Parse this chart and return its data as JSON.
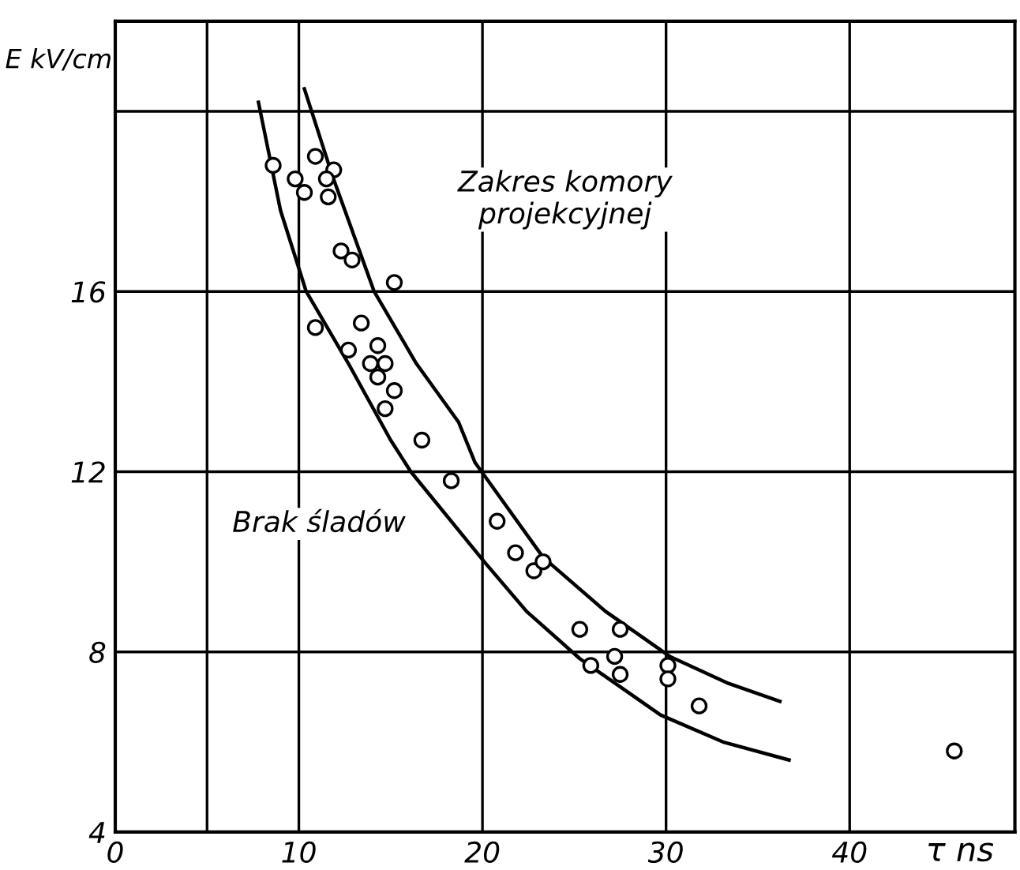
{
  "chart_data": {
    "type": "scatter",
    "xlabel": "τ ns",
    "ylabel": "E kV/cm",
    "xlim": [
      0,
      49
    ],
    "ylim": [
      4,
      22
    ],
    "xticks": [
      0,
      {
        "value": 5,
        "label": null
      },
      10,
      20,
      30,
      40
    ],
    "yticks": [
      4,
      8,
      12,
      16,
      {
        "value": 20,
        "label": null
      }
    ],
    "grid": true,
    "annotations": [
      "Zakres komory\nprojekcyjnej",
      "Brak śladów"
    ],
    "series": [
      {
        "marker": "circle",
        "color": "#000000",
        "x": [
          8.6,
          9.8,
          10.3,
          10.9,
          11.9,
          11.5,
          11.6,
          12.3,
          12.9,
          15.2,
          10.9,
          13.4,
          12.7,
          14.3,
          13.9,
          14.7,
          14.3,
          15.2,
          14.7,
          16.7,
          18.3,
          20.8,
          21.8,
          22.8,
          23.3,
          25.3,
          27.5,
          25.9,
          27.2,
          27.5,
          30.1,
          30.1,
          31.8,
          45.7
        ],
        "values": [
          18.8,
          18.5,
          18.2,
          19.0,
          18.7,
          18.5,
          18.1,
          16.9,
          16.7,
          16.2,
          15.2,
          15.3,
          14.7,
          14.8,
          14.4,
          14.4,
          14.1,
          13.8,
          13.4,
          12.7,
          11.8,
          10.9,
          10.2,
          9.8,
          10.0,
          8.5,
          8.5,
          7.7,
          7.9,
          7.5,
          7.7,
          7.4,
          6.8,
          5.8
        ]
      },
      {
        "type": "line",
        "marker": "none",
        "color": "#000000",
        "x": [
          10.3,
          11.8,
          14.1,
          16.4,
          18.7,
          19.6,
          23.3,
          26.7,
          30.2,
          33.4,
          36.2
        ],
        "values": [
          20.5,
          18.6,
          16.0,
          14.4,
          13.1,
          12.2,
          10.1,
          8.9,
          7.9,
          7.3,
          6.9
        ]
      },
      {
        "type": "line",
        "marker": "none",
        "color": "#000000",
        "x": [
          7.8,
          9.0,
          10.4,
          12.7,
          15.0,
          16.1,
          20.1,
          22.4,
          25.3,
          29.7,
          33.1,
          36.7
        ],
        "values": [
          20.2,
          17.8,
          16.0,
          14.4,
          12.7,
          12.0,
          10.0,
          8.9,
          7.85,
          6.6,
          6.0,
          5.6
        ]
      }
    ]
  }
}
